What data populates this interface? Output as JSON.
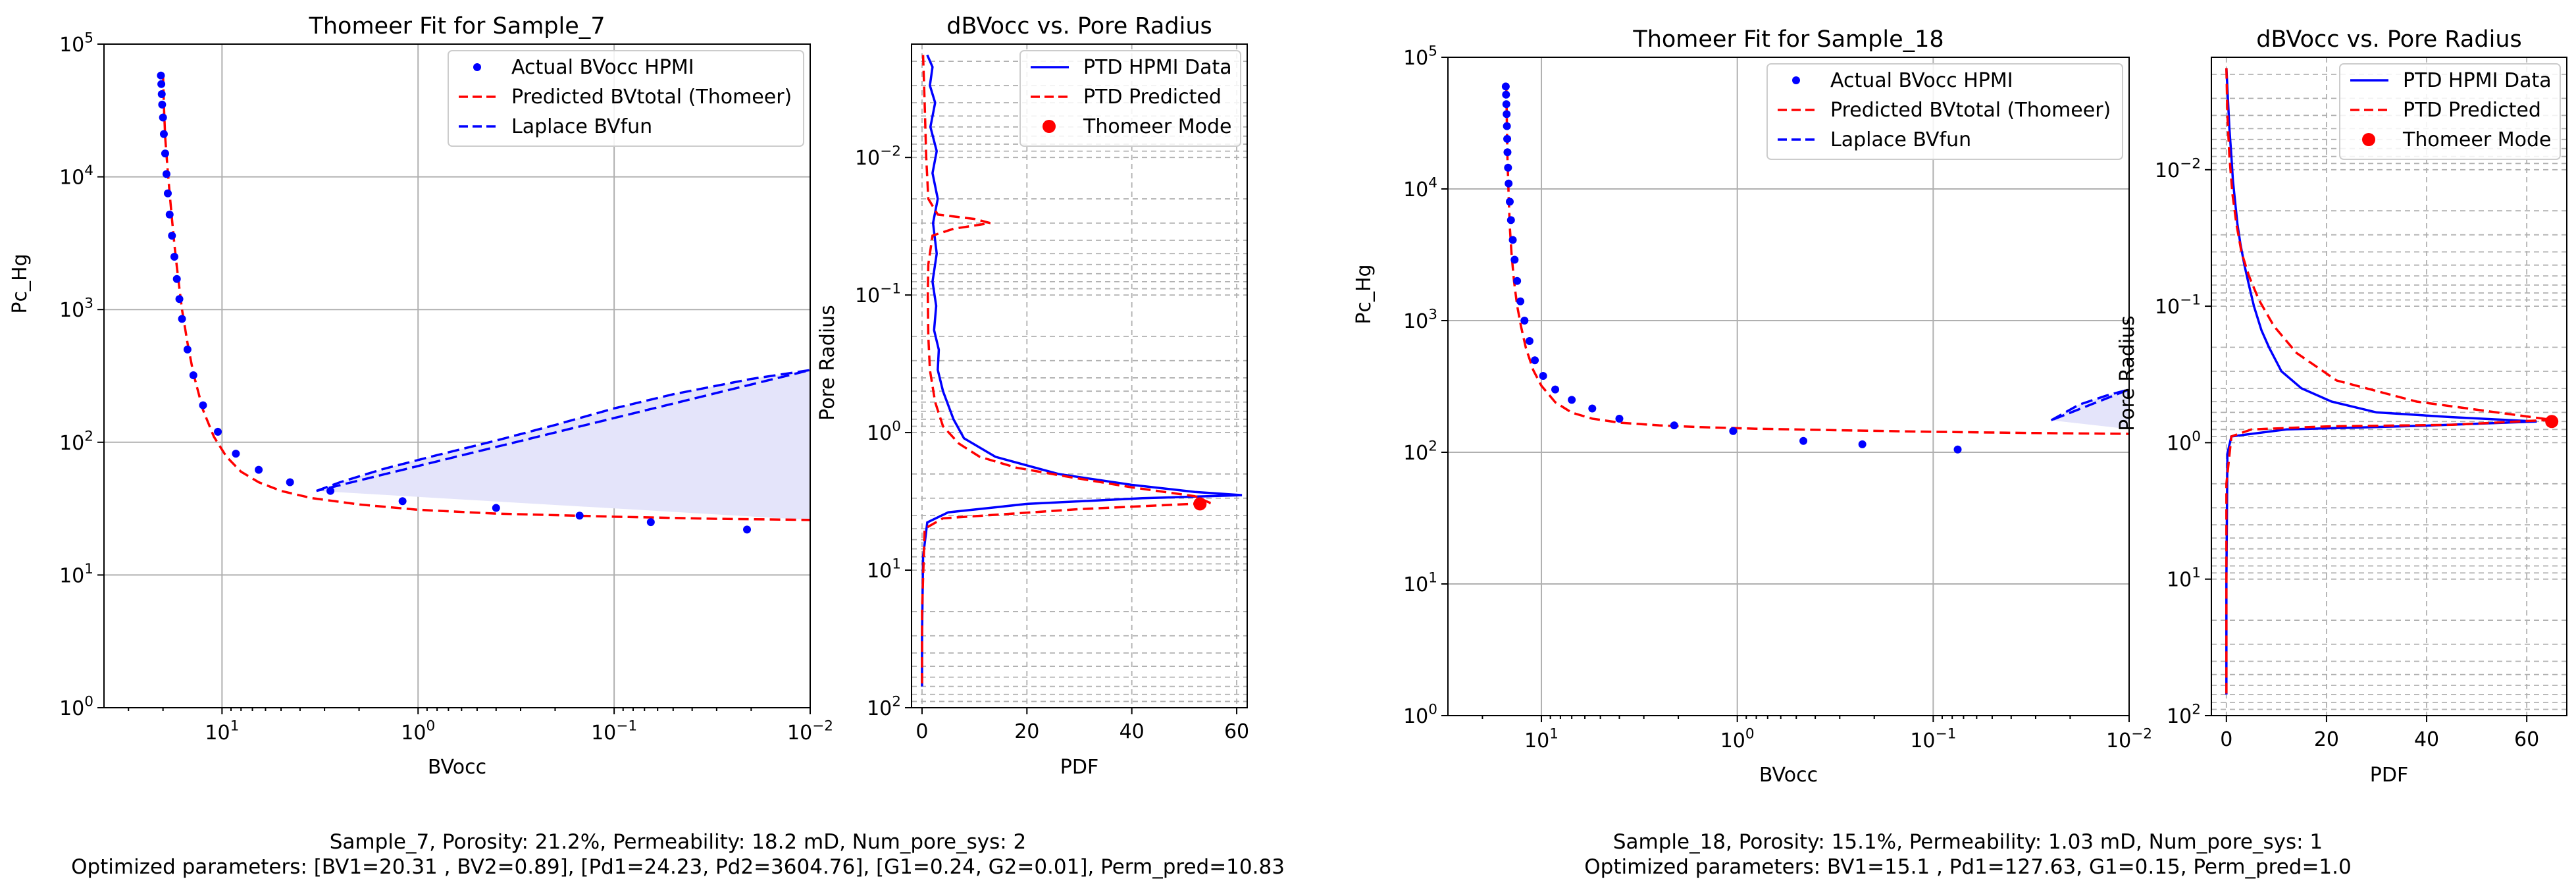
{
  "figures": [
    {
      "caption_line1": "Sample_7, Porosity: 21.2%,  Permeability: 18.2 mD,  Num_pore_sys: 2",
      "caption_line2": "Optimized parameters:  [BV1=20.31 , BV2=0.89],  [Pd1=24.23,  Pd2=3604.76],  [G1=0.24,  G2=0.01], Perm_pred=10.83"
    },
    {
      "caption_line1": "Sample_18, Porosity: 15.1%,  Permeability: 1.03 mD,  Num_pore_sys: 1",
      "caption_line2": "Optimized parameters:  BV1=15.1 ,  Pd1=127.63,  G1=0.15, Perm_pred=1.0"
    }
  ],
  "colors": {
    "actual": "#0000ff",
    "predicted": "#ff0000",
    "laplace": "#0000ff",
    "fill": "#e4e4fa",
    "grid": "#b0b0b0"
  },
  "chart_data": [
    {
      "type": "scatter",
      "title": "Thomeer Fit for Sample_7",
      "xlabel": "BVocc",
      "ylabel": "Pc_Hg",
      "x_scale": "log",
      "x_reversed": true,
      "xlim": [
        40,
        0.01
      ],
      "y_scale": "log",
      "ylim": [
        1,
        100000
      ],
      "xticks": [
        "10^1",
        "10^0",
        "10^-1",
        "10^-2"
      ],
      "yticks": [
        "10^0",
        "10^1",
        "10^2",
        "10^3",
        "10^4",
        "10^5"
      ],
      "grid": true,
      "legend_position": "top-right",
      "series": [
        {
          "name": "Actual BVocc HPMI",
          "style": "points",
          "x": [
            20.5,
            20.4,
            20.3,
            20.2,
            20.0,
            19.8,
            19.5,
            19.2,
            18.9,
            18.5,
            18.0,
            17.5,
            17.0,
            16.5,
            16.0,
            15.0,
            14.0,
            12.5,
            10.5,
            8.5,
            6.5,
            4.5,
            2.8,
            1.2,
            0.4,
            0.15,
            0.065,
            0.021
          ],
          "y": [
            58000,
            50000,
            42000,
            35000,
            28000,
            21000,
            15000,
            10500,
            7500,
            5200,
            3600,
            2500,
            1700,
            1200,
            850,
            500,
            320,
            190,
            120,
            82,
            62,
            50,
            43,
            36,
            32,
            28,
            25,
            22
          ]
        },
        {
          "name": "Predicted BVtotal (Thomeer)",
          "style": "dashed",
          "x": [
            20.0,
            19.8,
            19.5,
            19.0,
            18.5,
            18.0,
            17.5,
            17.0,
            16.5,
            16.0,
            15.0,
            14.0,
            12.5,
            11.0,
            9.5,
            8.0,
            6.5,
            5.0,
            3.5,
            2.0,
            1.0,
            0.4,
            0.1,
            0.03,
            0.01
          ],
          "y": [
            60000,
            35000,
            20000,
            12000,
            7500,
            4800,
            3100,
            2100,
            1450,
            1000,
            560,
            330,
            175,
            110,
            78,
            60,
            50,
            43,
            38,
            34,
            31,
            29,
            27.5,
            26.5,
            26
          ]
        },
        {
          "name": "Laplace BVfun",
          "style": "dashed-area",
          "upper_x": [
            3.3,
            2.5,
            1.5,
            0.8,
            0.4,
            0.2,
            0.1,
            0.05,
            0.02,
            0.01
          ],
          "upper_y": [
            43,
            50,
            63,
            80,
            103,
            135,
            180,
            230,
            300,
            350
          ],
          "lower_x": [
            3.3,
            0.01
          ],
          "lower_y": [
            43,
            26
          ]
        }
      ]
    },
    {
      "type": "line",
      "title": "dBVocc vs. Pore Radius",
      "xlabel": "PDF",
      "ylabel": "Pore Radius",
      "xlim": [
        -2,
        62
      ],
      "xticks": [
        "0",
        "20",
        "40",
        "60"
      ],
      "y_scale": "log",
      "y_reversed": true,
      "ylim": [
        0.0015,
        100
      ],
      "yticks": [
        "10^-2",
        "10^-1",
        "10^0",
        "10^1",
        "10^2"
      ],
      "grid": true,
      "legend_position": "top-right",
      "series": [
        {
          "name": "PTD HPMI Data",
          "style": "solid",
          "x": [
            1.0,
            2.0,
            1.5,
            2.5,
            1.6,
            2.8,
            2.0,
            3.0,
            2.1,
            2.8,
            2.0,
            2.7,
            2.3,
            3.2,
            3.0,
            4.0,
            6.0,
            8.0,
            14.0,
            26.0,
            40.0,
            52.0,
            61.0,
            42.0,
            20.0,
            5.0,
            1.0,
            0.2,
            0.0,
            0.0
          ],
          "y": [
            0.0018,
            0.0022,
            0.003,
            0.004,
            0.006,
            0.009,
            0.013,
            0.02,
            0.03,
            0.05,
            0.08,
            0.12,
            0.18,
            0.25,
            0.35,
            0.5,
            0.8,
            1.1,
            1.5,
            2.0,
            2.4,
            2.7,
            2.85,
            3.0,
            3.3,
            3.8,
            4.5,
            8.0,
            30.0,
            70.0
          ]
        },
        {
          "name": "PTD Predicted",
          "style": "dashed",
          "x": [
            0.2,
            0.5,
            0.8,
            1.2,
            3.0,
            10.0,
            13.0,
            6.0,
            2.0,
            1.2,
            1.1,
            1.2,
            1.5,
            2.5,
            4.0,
            7.0,
            11.0,
            18.0,
            28.0,
            40.0,
            52.0,
            55.0,
            30.0,
            4.0,
            0.5,
            0.0,
            0.0
          ],
          "y": [
            0.0018,
            0.004,
            0.01,
            0.02,
            0.026,
            0.028,
            0.03,
            0.033,
            0.037,
            0.06,
            0.1,
            0.2,
            0.35,
            0.6,
            0.9,
            1.2,
            1.5,
            1.8,
            2.1,
            2.5,
            2.9,
            3.25,
            3.6,
            4.2,
            5.0,
            20.0,
            70.0
          ]
        },
        {
          "name": "Thomeer Mode",
          "style": "point",
          "x": [
            53.0
          ],
          "y": [
            3.3
          ]
        }
      ]
    },
    {
      "type": "scatter",
      "title": "Thomeer Fit for Sample_18",
      "xlabel": "BVocc",
      "ylabel": "Pc_Hg",
      "x_scale": "log",
      "x_reversed": true,
      "xlim": [
        30,
        0.01
      ],
      "y_scale": "log",
      "ylim": [
        1,
        100000
      ],
      "xticks": [
        "10^1",
        "10^0",
        "10^-1",
        "10^-2"
      ],
      "yticks": [
        "10^0",
        "10^1",
        "10^2",
        "10^3",
        "10^4",
        "10^5"
      ],
      "grid": true,
      "legend_position": "top-right",
      "series": [
        {
          "name": "Actual BVocc HPMI",
          "style": "points",
          "x": [
            15.2,
            15.15,
            15.1,
            15.05,
            15.0,
            14.95,
            14.9,
            14.8,
            14.7,
            14.5,
            14.3,
            14.0,
            13.7,
            13.3,
            12.8,
            12.2,
            11.5,
            10.8,
            9.8,
            8.5,
            7.0,
            5.5,
            4.0,
            2.1,
            1.05,
            0.46,
            0.23,
            0.075
          ],
          "y": [
            60000,
            52000,
            44000,
            37000,
            30000,
            24000,
            19000,
            14500,
            11000,
            8000,
            5800,
            4100,
            2900,
            2000,
            1400,
            1000,
            700,
            500,
            380,
            300,
            250,
            215,
            180,
            160,
            145,
            122,
            115,
            105
          ]
        },
        {
          "name": "Predicted BVtotal (Thomeer)",
          "style": "dashed",
          "x": [
            15.1,
            15.0,
            14.9,
            14.7,
            14.5,
            14.2,
            13.8,
            13.3,
            12.7,
            12.0,
            11.0,
            10.0,
            8.5,
            7.0,
            5.5,
            4.0,
            2.5,
            1.5,
            0.8,
            0.3,
            0.1,
            0.03,
            0.01
          ],
          "y": [
            60000,
            30000,
            17000,
            9000,
            5200,
            3200,
            2000,
            1300,
            900,
            620,
            420,
            320,
            240,
            200,
            180,
            168,
            160,
            155,
            151,
            147,
            143,
            140,
            138
          ]
        },
        {
          "name": "Laplace BVfun",
          "style": "dashed-area",
          "upper_x": [
            0.025,
            0.018,
            0.013,
            0.01
          ],
          "upper_y": [
            175,
            230,
            270,
            300
          ],
          "lower_x": [
            0.025,
            0.01
          ],
          "lower_y": [
            175,
            150
          ]
        }
      ]
    },
    {
      "type": "line",
      "title": "dBVocc vs. Pore Radius",
      "xlabel": "PDF",
      "ylabel": "Pore Radius",
      "xlim": [
        -3,
        68
      ],
      "xticks": [
        "0",
        "20",
        "40",
        "60"
      ],
      "y_scale": "log",
      "y_reversed": true,
      "ylim": [
        0.0015,
        100
      ],
      "yticks": [
        "10^-2",
        "10^-1",
        "10^0",
        "10^1",
        "10^2"
      ],
      "grid": true,
      "legend_position": "top-right",
      "series": [
        {
          "name": "PTD HPMI Data",
          "style": "solid",
          "x": [
            0.0,
            0.3,
            0.6,
            1.0,
            1.3,
            1.8,
            2.2,
            2.8,
            3.6,
            4.5,
            5.5,
            7.0,
            8.5,
            11.0,
            15.0,
            21.0,
            30.0,
            45.0,
            62.0,
            40.0,
            12.0,
            1.0,
            0.2,
            0.0,
            0.0
          ],
          "y": [
            0.0018,
            0.003,
            0.005,
            0.008,
            0.012,
            0.018,
            0.025,
            0.035,
            0.05,
            0.07,
            0.1,
            0.15,
            0.2,
            0.3,
            0.4,
            0.5,
            0.6,
            0.65,
            0.7,
            0.75,
            0.8,
            0.9,
            1.2,
            10.0,
            70.0
          ]
        },
        {
          "name": "PTD Predicted",
          "style": "dashed",
          "x": [
            0.0,
            0.2,
            0.6,
            1.2,
            2.0,
            3.0,
            4.5,
            6.5,
            9.5,
            14.0,
            22.0,
            38.0,
            65.0,
            45.0,
            20.0,
            5.0,
            1.0,
            0.0,
            0.0
          ],
          "y": [
            0.0018,
            0.004,
            0.008,
            0.015,
            0.025,
            0.04,
            0.06,
            0.09,
            0.14,
            0.22,
            0.35,
            0.5,
            0.68,
            0.74,
            0.76,
            0.8,
            0.9,
            2.0,
            70.0
          ]
        },
        {
          "name": "Thomeer Mode",
          "style": "point",
          "x": [
            65.0
          ],
          "y": [
            0.7
          ]
        }
      ]
    }
  ]
}
